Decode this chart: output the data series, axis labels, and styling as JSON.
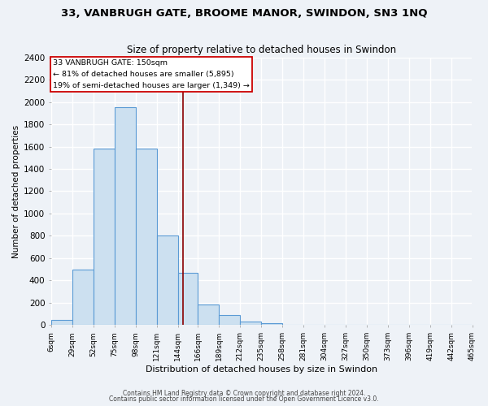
{
  "title1": "33, VANBRUGH GATE, BROOME MANOR, SWINDON, SN3 1NQ",
  "title2": "Size of property relative to detached houses in Swindon",
  "xlabel": "Distribution of detached houses by size in Swindon",
  "ylabel": "Number of detached properties",
  "footer1": "Contains HM Land Registry data © Crown copyright and database right 2024.",
  "footer2": "Contains public sector information licensed under the Open Government Licence v3.0.",
  "bin_edges": [
    6,
    29,
    52,
    75,
    98,
    121,
    144,
    166,
    189,
    212,
    235,
    258,
    281,
    304,
    327,
    350,
    373,
    396,
    419,
    442,
    465
  ],
  "bin_labels": [
    "6sqm",
    "29sqm",
    "52sqm",
    "75sqm",
    "98sqm",
    "121sqm",
    "144sqm",
    "166sqm",
    "189sqm",
    "212sqm",
    "235sqm",
    "258sqm",
    "281sqm",
    "304sqm",
    "327sqm",
    "350sqm",
    "373sqm",
    "396sqm",
    "419sqm",
    "442sqm",
    "465sqm"
  ],
  "bar_heights": [
    50,
    500,
    1580,
    1950,
    1580,
    800,
    470,
    185,
    90,
    30,
    20,
    5,
    5,
    2,
    2,
    0,
    0,
    0,
    0,
    0
  ],
  "bar_color": "#cce0f0",
  "bar_edge_color": "#5b9bd5",
  "vline_x": 150,
  "vline_color": "#8b0000",
  "ann_line1": "33 VANBRUGH GATE: 150sqm",
  "ann_line2": "← 81% of detached houses are smaller (5,895)",
  "ann_line3": "19% of semi-detached houses are larger (1,349) →",
  "ylim": [
    0,
    2400
  ],
  "yticks": [
    0,
    200,
    400,
    600,
    800,
    1000,
    1200,
    1400,
    1600,
    1800,
    2000,
    2200,
    2400
  ],
  "background_color": "#eef2f7",
  "grid_color": "#ffffff"
}
